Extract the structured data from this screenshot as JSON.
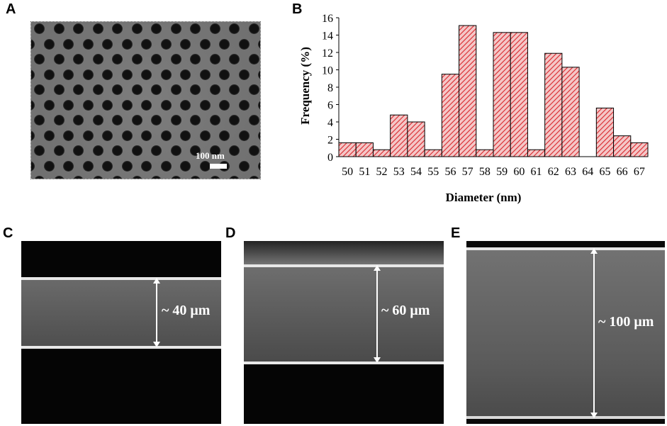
{
  "panels": {
    "A": {
      "letter": "A",
      "scale_label": "100 nm"
    },
    "B": {
      "letter": "B"
    },
    "C": {
      "letter": "C",
      "thickness_label": "~ 40 μm"
    },
    "D": {
      "letter": "D",
      "thickness_label": "~ 60 μm"
    },
    "E": {
      "letter": "E",
      "thickness_label": "~ 100 μm"
    }
  },
  "colors": {
    "bar_fill": "#f4c7c7",
    "bar_hatch": "#d9262c",
    "bar_edge": "#000000"
  },
  "chart_data": {
    "type": "bar",
    "title": "",
    "xlabel": "Diameter (nm)",
    "ylabel": "Frequency (%)",
    "categories": [
      "50",
      "51",
      "52",
      "53",
      "54",
      "55",
      "56",
      "57",
      "58",
      "59",
      "60",
      "61",
      "62",
      "63",
      "64",
      "65",
      "66",
      "67"
    ],
    "values": [
      1.6,
      1.6,
      0.8,
      4.8,
      4.0,
      0.8,
      9.5,
      15.1,
      0.8,
      14.3,
      14.3,
      0.8,
      11.9,
      10.3,
      0,
      5.6,
      2.4,
      1.6
    ],
    "ylim": [
      0,
      16
    ],
    "yticks": [
      "0",
      "2",
      "4",
      "6",
      "8",
      "10",
      "12",
      "14",
      "16"
    ],
    "grid": false,
    "bar_style": "red diagonal hatch"
  }
}
